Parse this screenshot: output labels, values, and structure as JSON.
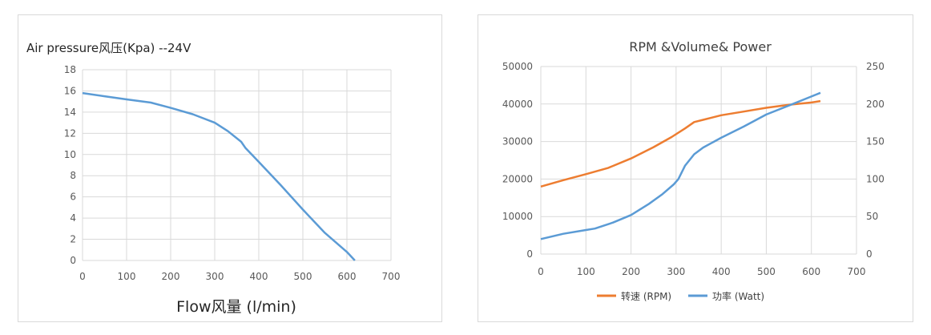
{
  "chart_data": [
    {
      "type": "line",
      "title": "Air pressure风压(Kpa)  --24V",
      "xlabel": "Flow风量  (l/min)",
      "ylabel": "",
      "xlim": [
        0,
        700
      ],
      "ylim": [
        0,
        18
      ],
      "x_ticks": [
        0,
        100,
        200,
        300,
        400,
        500,
        600,
        700
      ],
      "y_ticks": [
        0,
        2,
        4,
        6,
        8,
        10,
        12,
        14,
        16,
        18
      ],
      "grid": true,
      "colors": {
        "line": "#5b9bd5"
      },
      "series": [
        {
          "x": [
            0,
            50,
            100,
            155,
            200,
            250,
            300,
            330,
            360,
            370,
            400,
            450,
            500,
            550,
            600,
            618
          ],
          "values": [
            15.8,
            15.5,
            15.2,
            14.9,
            14.4,
            13.8,
            13.0,
            12.2,
            11.2,
            10.6,
            9.3,
            7.1,
            4.8,
            2.6,
            0.8,
            0.0
          ]
        }
      ]
    },
    {
      "type": "line",
      "title": "RPM &Volume& Power",
      "xlabel": "",
      "ylabel": "",
      "xlim": [
        0,
        700
      ],
      "ylim": [
        0,
        50000
      ],
      "y2lim": [
        0,
        250
      ],
      "x_ticks": [
        0,
        100,
        200,
        300,
        400,
        500,
        600,
        700
      ],
      "y_ticks": [
        0,
        10000,
        20000,
        30000,
        40000,
        50000
      ],
      "y2_ticks": [
        0,
        50,
        100,
        150,
        200,
        250
      ],
      "grid": true,
      "legend_position": "bottom",
      "series": [
        {
          "name": "转速 (RPM)",
          "axis": "left",
          "color": "#ed7d31",
          "x": [
            0,
            50,
            100,
            150,
            200,
            250,
            290,
            320,
            340,
            360,
            400,
            450,
            500,
            550,
            600,
            620
          ],
          "values": [
            18000,
            19700,
            21300,
            23000,
            25500,
            28500,
            31200,
            33500,
            35200,
            35800,
            37000,
            38000,
            39000,
            39800,
            40400,
            40800
          ]
        },
        {
          "name": "功率 (Watt)",
          "axis": "right",
          "color": "#5b9bd5",
          "x": [
            0,
            50,
            100,
            120,
            160,
            200,
            240,
            270,
            295,
            305,
            320,
            340,
            360,
            400,
            450,
            500,
            550,
            600,
            620
          ],
          "values": [
            20,
            27,
            32,
            34,
            42,
            52,
            67,
            80,
            93,
            100,
            118,
            133,
            142,
            155,
            170,
            186,
            198,
            210,
            215
          ]
        }
      ]
    }
  ]
}
